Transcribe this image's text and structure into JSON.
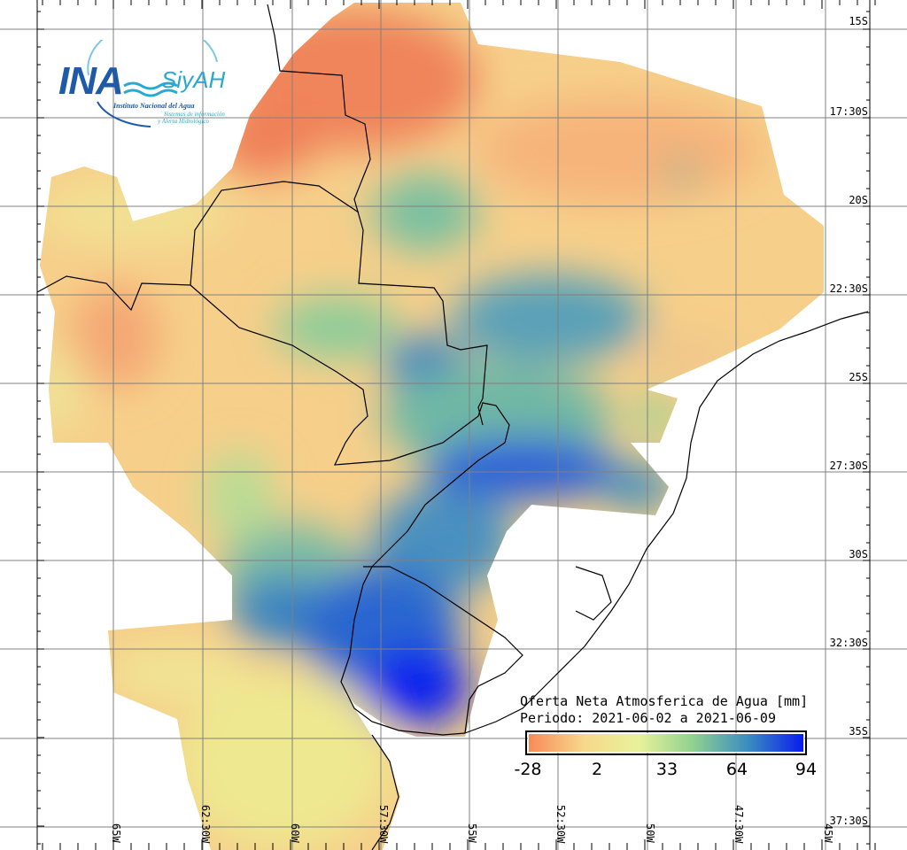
{
  "logo": {
    "acronym": "INA",
    "brand": "SiyAH",
    "institute": "Instituto Nacional del Agua",
    "system_line1": "Sistemas de información",
    "system_line2": "y Alerta Hidrológico"
  },
  "legend": {
    "title": "Oferta Neta Atmosferica de Agua [mm]",
    "period": "Periodo: 2021-06-02 a 2021-06-09",
    "unit": "mm",
    "ticks": [
      "-28",
      "2",
      "33",
      "64",
      "94"
    ],
    "min": -28,
    "max": 94,
    "colors": [
      "#f88a58",
      "#f7d88a",
      "#e8f29a",
      "#90d090",
      "#3a8cc0",
      "#0a1cf0"
    ]
  },
  "lat_labels": [
    "15S",
    "17:30S",
    "20S",
    "22:30S",
    "25S",
    "27:30S",
    "30S",
    "32:30S",
    "35S",
    "37:30S"
  ],
  "lon_labels": [
    "65W",
    "62:30W",
    "60W",
    "57:30W",
    "55W",
    "52:30W",
    "50W",
    "47:30W",
    "45W"
  ]
}
